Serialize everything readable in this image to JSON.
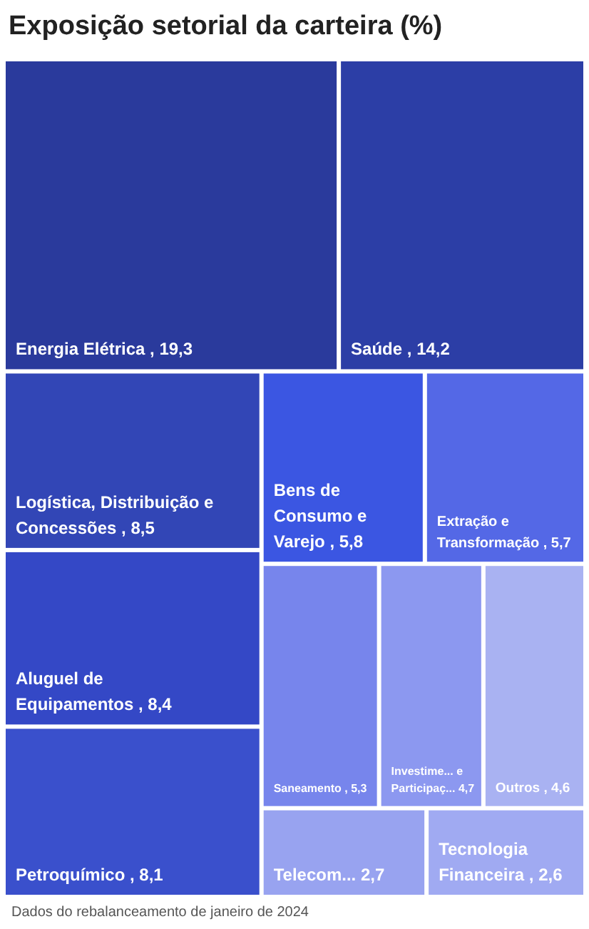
{
  "chart_data": {
    "type": "other",
    "title": "Exposição setorial da carteira (%)",
    "categories": [
      "Energia Elétrica",
      "Saúde",
      "Logística, Distribuição e Concessões",
      "Aluguel de Equipamentos",
      "Petroquímico",
      "Bens de Consumo e Varejo",
      "Extração e Transformação",
      "Saneamento",
      "Investime... e Participaç...",
      "Outros",
      "Telecom...",
      "Tecnologia Financeira"
    ],
    "values": [
      19.3,
      14.2,
      8.5,
      8.4,
      8.1,
      5.8,
      5.7,
      5.3,
      4.7,
      4.6,
      2.7,
      2.6
    ],
    "value_labels": [
      ", 19,3",
      ", 14,2",
      ", 8,5",
      ", 8,4",
      ", 8,1",
      ", 5,8",
      ", 5,7",
      ", 5,3",
      "4,7",
      ", 4,6",
      "2,7",
      ", 2,6"
    ],
    "colors": [
      "#2a3a9c",
      "#2c3ea6",
      "#3246b6",
      "#3448c6",
      "#3a50cc",
      "#3b56e2",
      "#5468e6",
      "#7785ec",
      "#8c98f0",
      "#a9b2f2",
      "#98a3f0",
      "#a0aaf2"
    ],
    "annotations": [
      "Dados do rebalanceamento de janeiro de 2024"
    ]
  }
}
